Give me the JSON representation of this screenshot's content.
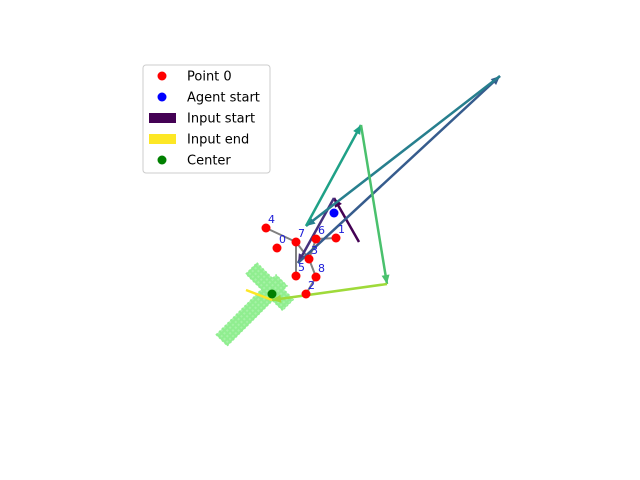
{
  "chart_data": {
    "type": "scatter",
    "title": "",
    "xlabel": "",
    "ylabel": "",
    "xlim": [
      0,
      640
    ],
    "ylim": [
      480,
      0
    ],
    "axes_visible": false,
    "grid": false,
    "legend_placement": "upper-left",
    "legend": [
      {
        "label": "Point 0",
        "kind": "dot",
        "color": "#ff0000"
      },
      {
        "label": "Agent start",
        "kind": "dot",
        "color": "#0000ff"
      },
      {
        "label": "Input start",
        "kind": "bar",
        "color": "#440154"
      },
      {
        "label": "Input end",
        "kind": "bar",
        "color": "#fde725"
      },
      {
        "label": "Center",
        "kind": "dot",
        "color": "#008000"
      }
    ],
    "points": [
      {
        "label": "0",
        "x": 277,
        "y": 248
      },
      {
        "label": "1",
        "x": 336,
        "y": 238
      },
      {
        "label": "2",
        "x": 306,
        "y": 294
      },
      {
        "label": "3",
        "x": 309,
        "y": 259
      },
      {
        "label": "4",
        "x": 266,
        "y": 228
      },
      {
        "label": "5",
        "x": 296,
        "y": 276
      },
      {
        "label": "6",
        "x": 316,
        "y": 239
      },
      {
        "label": "7",
        "x": 296,
        "y": 242
      },
      {
        "label": "8",
        "x": 316,
        "y": 277
      }
    ],
    "skeleton_edges": [
      [
        4,
        7
      ],
      [
        7,
        3
      ],
      [
        3,
        6
      ],
      [
        6,
        1
      ],
      [
        3,
        8
      ],
      [
        8,
        2
      ],
      [
        7,
        5
      ]
    ],
    "agent_start": {
      "x": 334,
      "y": 213
    },
    "center": {
      "x": 272,
      "y": 294
    },
    "cross_marker": {
      "x": 257,
      "y": 305,
      "color": "#90ee90"
    },
    "trajectory": [
      {
        "x": 359,
        "y": 242
      },
      {
        "x": 334,
        "y": 198
      },
      {
        "x": 298,
        "y": 263
      },
      {
        "x": 500,
        "y": 76
      },
      {
        "x": 306,
        "y": 226
      },
      {
        "x": 361,
        "y": 125
      },
      {
        "x": 387,
        "y": 284
      },
      {
        "x": 272,
        "y": 300
      },
      {
        "x": 246,
        "y": 290
      }
    ],
    "trajectory_colormap": "viridis"
  }
}
